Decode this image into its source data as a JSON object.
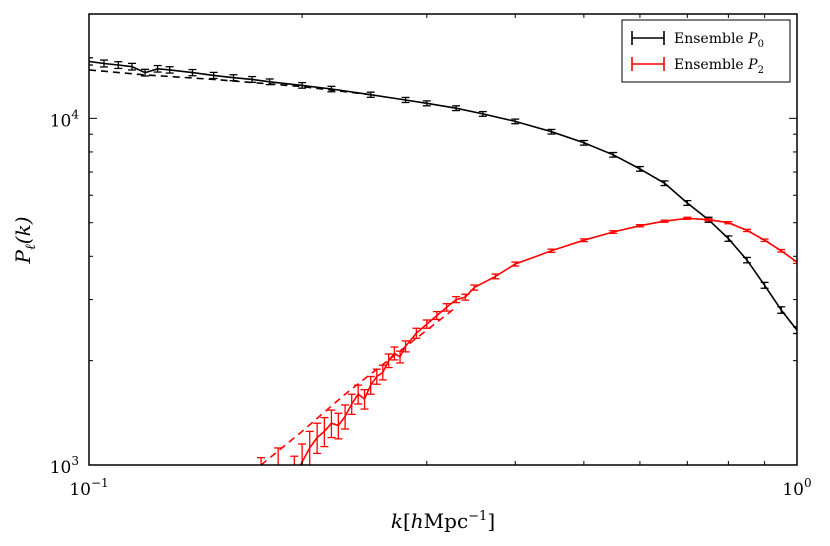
{
  "chart_data": {
    "type": "line",
    "xlabel": "k[hMpc^{-1}]",
    "ylabel": "P_ℓ(k)",
    "x_scale": "log",
    "y_scale": "log",
    "xlim": [
      0.1,
      1.0
    ],
    "ylim": [
      1000,
      20000
    ],
    "grid": false,
    "legend_position": "top-right",
    "x_ticks": [
      {
        "value": 0.1,
        "base": "10",
        "exp": "−1"
      },
      {
        "value": 1.0,
        "base": "10",
        "exp": "0"
      }
    ],
    "y_ticks": [
      {
        "value": 1000,
        "base": "10",
        "exp": "3"
      },
      {
        "value": 10000,
        "base": "10",
        "exp": "4"
      }
    ],
    "series": [
      {
        "name": "Ensemble P_0",
        "legend_text": "Ensemble ",
        "legend_sym": "P",
        "legend_sub": "0",
        "color": "#000000",
        "style": "errorbar",
        "points": [
          [
            0.1,
            14600,
            350
          ],
          [
            0.105,
            14400,
            330
          ],
          [
            0.11,
            14250,
            320
          ],
          [
            0.115,
            14100,
            310
          ],
          [
            0.12,
            13550,
            300
          ],
          [
            0.125,
            13900,
            300
          ],
          [
            0.13,
            13800,
            290
          ],
          [
            0.14,
            13550,
            280
          ],
          [
            0.15,
            13300,
            270
          ],
          [
            0.16,
            13100,
            260
          ],
          [
            0.17,
            12950,
            250
          ],
          [
            0.18,
            12750,
            240
          ],
          [
            0.2,
            12450,
            230
          ],
          [
            0.22,
            12150,
            220
          ],
          [
            0.25,
            11700,
            200
          ],
          [
            0.28,
            11300,
            190
          ],
          [
            0.3,
            11050,
            180
          ],
          [
            0.33,
            10700,
            170
          ],
          [
            0.36,
            10300,
            160
          ],
          [
            0.4,
            9800,
            150
          ],
          [
            0.45,
            9150,
            140
          ],
          [
            0.5,
            8500,
            130
          ],
          [
            0.55,
            7850,
            120
          ],
          [
            0.6,
            7150,
            110
          ],
          [
            0.65,
            6500,
            100
          ],
          [
            0.7,
            5700,
            90
          ],
          [
            0.75,
            5100,
            85
          ],
          [
            0.8,
            4500,
            80
          ],
          [
            0.85,
            3900,
            70
          ],
          [
            0.9,
            3300,
            65
          ],
          [
            0.95,
            2800,
            60
          ],
          [
            1.0,
            2450,
            55
          ]
        ]
      },
      {
        "name": "Ensemble P_2",
        "legend_text": "Ensemble ",
        "legend_sym": "P",
        "legend_sub": "2",
        "color": "#ff0000",
        "style": "errorbar",
        "points": [
          [
            0.175,
            900,
            150
          ],
          [
            0.185,
            980,
            140
          ],
          [
            0.195,
            920,
            140
          ],
          [
            0.2,
            1020,
            130
          ],
          [
            0.205,
            1120,
            130
          ],
          [
            0.21,
            1200,
            120
          ],
          [
            0.215,
            1250,
            120
          ],
          [
            0.22,
            1320,
            120
          ],
          [
            0.225,
            1300,
            110
          ],
          [
            0.23,
            1380,
            110
          ],
          [
            0.235,
            1500,
            100
          ],
          [
            0.24,
            1600,
            100
          ],
          [
            0.245,
            1550,
            100
          ],
          [
            0.25,
            1700,
            100
          ],
          [
            0.255,
            1800,
            90
          ],
          [
            0.26,
            1850,
            90
          ],
          [
            0.265,
            2000,
            90
          ],
          [
            0.27,
            2100,
            90
          ],
          [
            0.275,
            2050,
            80
          ],
          [
            0.28,
            2200,
            80
          ],
          [
            0.29,
            2400,
            80
          ],
          [
            0.3,
            2550,
            70
          ],
          [
            0.31,
            2700,
            70
          ],
          [
            0.32,
            2850,
            70
          ],
          [
            0.33,
            3000,
            60
          ],
          [
            0.34,
            3050,
            60
          ],
          [
            0.35,
            3250,
            55
          ],
          [
            0.375,
            3500,
            55
          ],
          [
            0.4,
            3800,
            50
          ],
          [
            0.45,
            4150,
            45
          ],
          [
            0.5,
            4450,
            40
          ],
          [
            0.55,
            4700,
            40
          ],
          [
            0.6,
            4900,
            35
          ],
          [
            0.65,
            5050,
            35
          ],
          [
            0.7,
            5150,
            35
          ],
          [
            0.75,
            5100,
            35
          ],
          [
            0.8,
            5000,
            35
          ],
          [
            0.85,
            4750,
            35
          ],
          [
            0.9,
            4450,
            35
          ],
          [
            0.95,
            4150,
            35
          ],
          [
            1.0,
            3850,
            35
          ]
        ]
      },
      {
        "name": "",
        "color": "#000000",
        "style": "dashed",
        "points": [
          [
            0.1,
            13800
          ],
          [
            0.12,
            13350
          ],
          [
            0.15,
            12950
          ],
          [
            0.2,
            12350
          ],
          [
            0.25,
            11700
          ]
        ]
      },
      {
        "name": "",
        "color": "#ff0000",
        "style": "dashed",
        "points": [
          [
            0.175,
            1000
          ],
          [
            0.2,
            1250
          ],
          [
            0.23,
            1600
          ],
          [
            0.26,
            1950
          ],
          [
            0.3,
            2450
          ],
          [
            0.33,
            2850
          ]
        ]
      }
    ]
  }
}
